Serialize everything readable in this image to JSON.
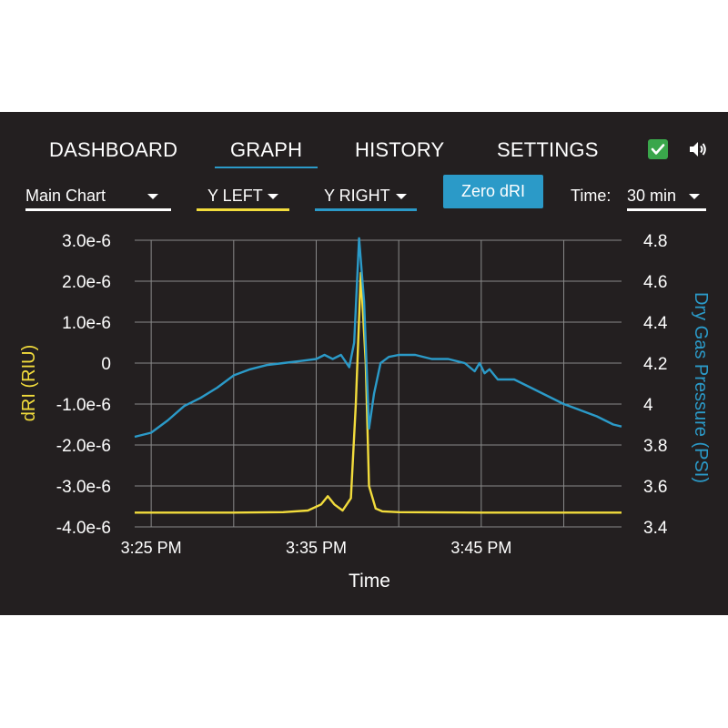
{
  "nav": {
    "tabs": [
      {
        "label": "DASHBOARD"
      },
      {
        "label": "GRAPH",
        "active": true
      },
      {
        "label": "HISTORY"
      },
      {
        "label": "SETTINGS"
      }
    ],
    "icons": [
      "check-icon",
      "speaker-icon"
    ]
  },
  "controls": {
    "chart_select": "Main Chart",
    "y_left": "Y LEFT",
    "y_right": "Y RIGHT",
    "zero_button": "Zero dRI",
    "time_label": "Time:",
    "time_value": "30 min"
  },
  "colors": {
    "background": "#231f20",
    "accent_blue": "#2b9ac8",
    "accent_yellow": "#f2dc3c",
    "check_green": "#3aa64b"
  },
  "chart_data": {
    "type": "line",
    "xlabel": "Time",
    "ylabel_left": "dRI (RIU)",
    "ylabel_right": "Dry Gas Pressure (PSI)",
    "x_ticks": [
      "3:25 PM",
      "3:35 PM",
      "3:45 PM"
    ],
    "x_tick_minutes": [
      25,
      35,
      45
    ],
    "xlim_minutes": [
      24,
      53.5
    ],
    "y_left_ticks": [
      "3.0e-6",
      "2.0e-6",
      "1.0e-6",
      "0",
      "-1.0e-6",
      "-2.0e-6",
      "-3.0e-6",
      "-4.0e-6"
    ],
    "y_left_tick_values": [
      3e-06,
      2e-06,
      1e-06,
      0,
      -1e-06,
      -2e-06,
      -3e-06,
      -4e-06
    ],
    "y_left_lim": [
      -4e-06,
      3e-06
    ],
    "y_right_ticks": [
      "4.8",
      "4.6",
      "4.4",
      "4.2",
      "4",
      "3.8",
      "3.6",
      "3.4"
    ],
    "y_right_tick_values": [
      4.8,
      4.6,
      4.4,
      4.2,
      4.0,
      3.8,
      3.6,
      3.4
    ],
    "y_right_lim": [
      3.4,
      4.8
    ],
    "grid": true,
    "series": [
      {
        "axis": "left",
        "color": "#f2dc3c",
        "x": [
          24,
          30,
          33,
          34.5,
          35.3,
          35.7,
          36.1,
          36.6,
          37.1,
          37.4,
          37.7,
          38.0,
          38.2,
          38.6,
          39.0,
          40,
          45,
          53.5
        ],
        "y": [
          -3.65e-06,
          -3.65e-06,
          -3.64e-06,
          -3.6e-06,
          -3.45e-06,
          -3.25e-06,
          -3.45e-06,
          -3.6e-06,
          -3.3e-06,
          -1e-06,
          2.2e-06,
          0.0,
          -3e-06,
          -3.55e-06,
          -3.62e-06,
          -3.64e-06,
          -3.65e-06,
          -3.65e-06
        ]
      },
      {
        "axis": "right",
        "color": "#2b9ac8",
        "x": [
          24,
          25,
          26,
          27,
          28,
          29,
          30,
          31,
          32,
          33,
          34,
          35,
          35.5,
          36,
          36.5,
          37.0,
          37.3,
          37.6,
          37.9,
          38.2,
          38.5,
          38.9,
          39.4,
          40,
          41,
          42,
          43,
          44,
          44.6,
          44.9,
          45.2,
          45.5,
          46,
          47,
          48,
          49,
          50,
          51,
          52,
          53,
          53.5
        ],
        "y": [
          3.84,
          3.86,
          3.92,
          3.99,
          4.03,
          4.08,
          4.14,
          4.17,
          4.19,
          4.2,
          4.21,
          4.22,
          4.24,
          4.22,
          4.24,
          4.18,
          4.3,
          4.81,
          4.5,
          3.88,
          4.05,
          4.2,
          4.23,
          4.24,
          4.24,
          4.22,
          4.22,
          4.2,
          4.16,
          4.2,
          4.15,
          4.17,
          4.12,
          4.12,
          4.08,
          4.04,
          4.0,
          3.97,
          3.94,
          3.9,
          3.89
        ]
      }
    ]
  }
}
